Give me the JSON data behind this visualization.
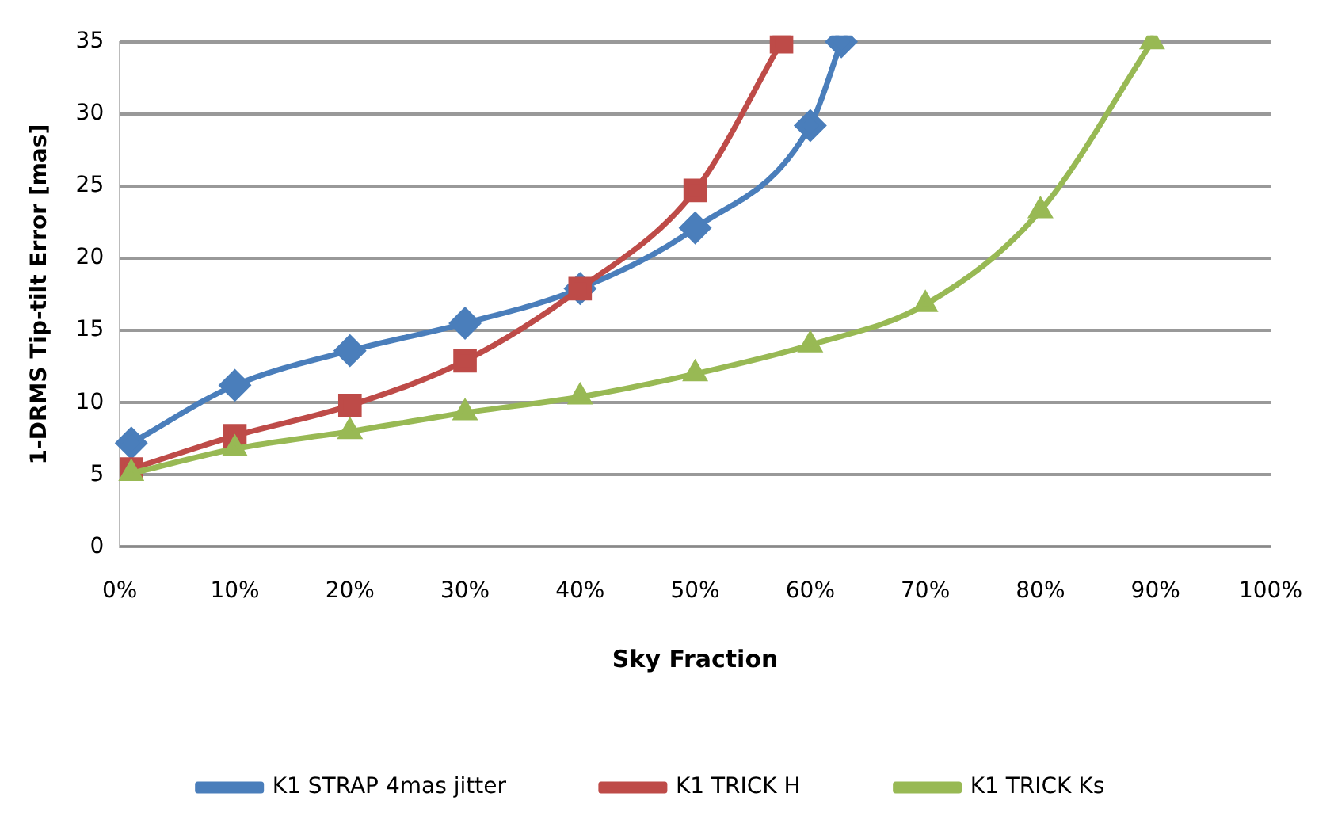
{
  "chart_data": {
    "type": "line",
    "xlabel": "Sky Fraction",
    "ylabel": "1-DRMS Tip-tilt Error [mas]",
    "xlim": [
      0,
      100
    ],
    "xticks": [
      {
        "value": 0,
        "label": "0%"
      },
      {
        "value": 10,
        "label": "10%"
      },
      {
        "value": 20,
        "label": "20%"
      },
      {
        "value": 30,
        "label": "30%"
      },
      {
        "value": 40,
        "label": "40%"
      },
      {
        "value": 50,
        "label": "50%"
      },
      {
        "value": 60,
        "label": "60%"
      },
      {
        "value": 70,
        "label": "70%"
      },
      {
        "value": 80,
        "label": "80%"
      },
      {
        "value": 90,
        "label": "90%"
      },
      {
        "value": 100,
        "label": "100%"
      }
    ],
    "ylim": [
      0,
      35
    ],
    "yticks": [
      0,
      5,
      10,
      15,
      20,
      25,
      30,
      35
    ],
    "grid": "y",
    "legend": "bottom",
    "series": [
      {
        "name": "K1 STRAP 4mas jitter",
        "color": "#4a7ebb",
        "marker": "diamond",
        "x": [
          1,
          10,
          20,
          30,
          40,
          50,
          60,
          62.7
        ],
        "values": [
          7.2,
          11.2,
          13.6,
          15.5,
          17.9,
          22.1,
          29.2,
          35
        ]
      },
      {
        "name": "K1 TRICK H",
        "color": "#be4b48",
        "marker": "square",
        "x": [
          1,
          10,
          20,
          30,
          40,
          50,
          57.5
        ],
        "values": [
          5.4,
          7.7,
          9.8,
          12.9,
          17.9,
          24.7,
          35
        ]
      },
      {
        "name": "K1 TRICK Ks",
        "color": "#98b954",
        "marker": "triangle",
        "x": [
          1,
          10,
          20,
          30,
          40,
          50,
          60,
          70,
          80,
          89.7
        ],
        "values": [
          5.1,
          6.8,
          8.0,
          9.3,
          10.4,
          12.0,
          14.0,
          16.8,
          23.3,
          35
        ]
      }
    ]
  }
}
